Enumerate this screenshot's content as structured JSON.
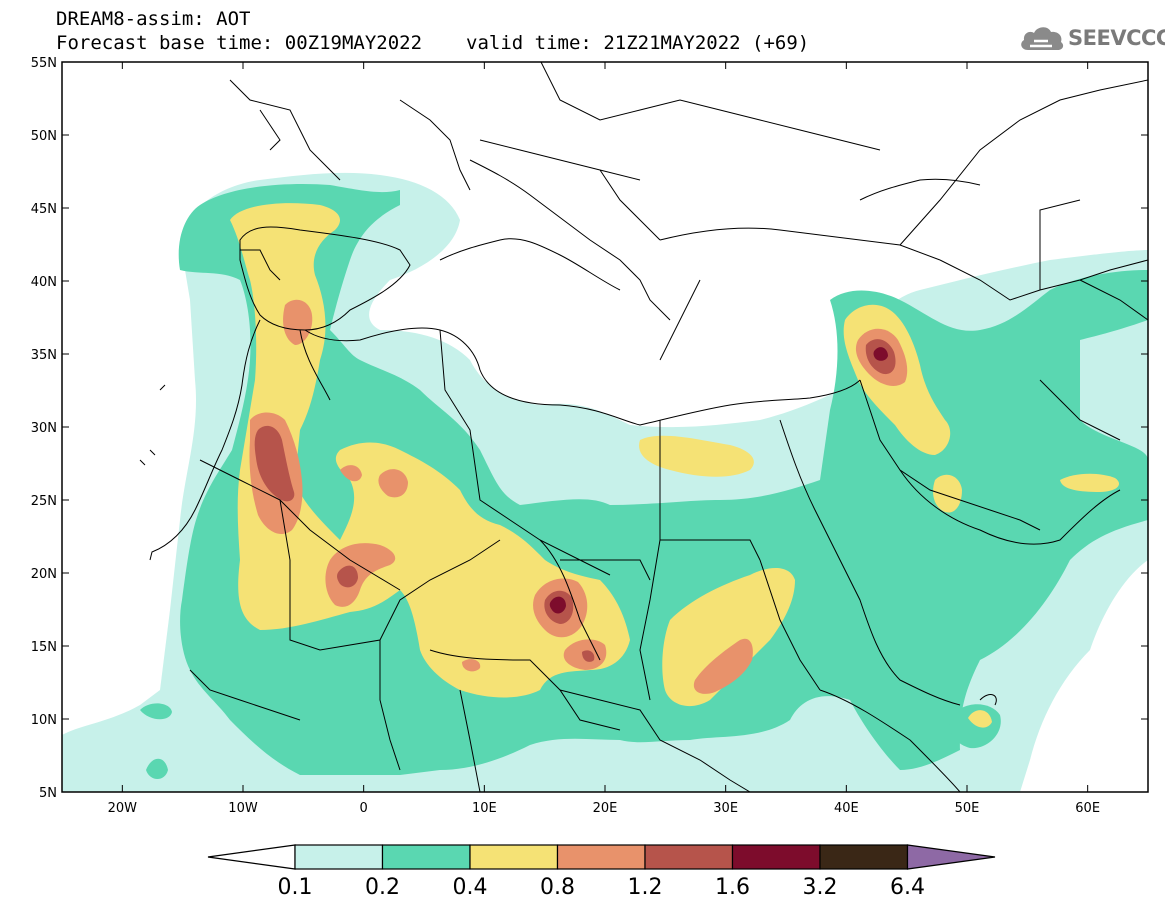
{
  "header": {
    "line1": "DREAM8-assim: AOT",
    "base_time": "Forecast base time: 00Z19MAY2022",
    "valid_time": "valid time: 21Z21MAY2022 (+69)"
  },
  "logo": {
    "text": "SEEVCCC",
    "icon": "cloud-icon"
  },
  "map": {
    "variable": "AOT",
    "lon_range": [
      -25,
      65
    ],
    "lat_range": [
      5,
      55
    ],
    "lat_ticks": [
      {
        "value": 55,
        "label": "55N"
      },
      {
        "value": 50,
        "label": "50N"
      },
      {
        "value": 45,
        "label": "45N"
      },
      {
        "value": 40,
        "label": "40N"
      },
      {
        "value": 35,
        "label": "35N"
      },
      {
        "value": 30,
        "label": "30N"
      },
      {
        "value": 25,
        "label": "25N"
      },
      {
        "value": 20,
        "label": "20N"
      },
      {
        "value": 15,
        "label": "15N"
      },
      {
        "value": 10,
        "label": "10N"
      },
      {
        "value": 5,
        "label": "5N"
      }
    ],
    "lon_ticks": [
      {
        "value": -20,
        "label": "20W"
      },
      {
        "value": -10,
        "label": "10W"
      },
      {
        "value": 0,
        "label": "0"
      },
      {
        "value": 10,
        "label": "10E"
      },
      {
        "value": 20,
        "label": "20E"
      },
      {
        "value": 30,
        "label": "30E"
      },
      {
        "value": 40,
        "label": "40E"
      },
      {
        "value": 50,
        "label": "50E"
      },
      {
        "value": 60,
        "label": "60E"
      }
    ]
  },
  "legend": {
    "boundaries": [
      "0.1",
      "0.2",
      "0.4",
      "0.8",
      "1.2",
      "1.6",
      "3.2",
      "6.4"
    ],
    "colors": [
      "#c7f1ea",
      "#5ad7b1",
      "#f5e275",
      "#e8926b",
      "#b6544b",
      "#7d0c2c",
      "#3a2716",
      "#8e69a5"
    ],
    "low_color": "#ffffff"
  }
}
